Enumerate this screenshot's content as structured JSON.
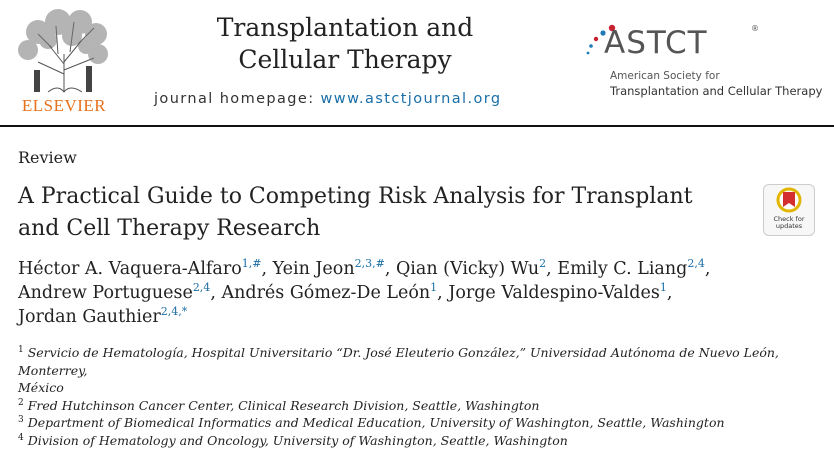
{
  "header": {
    "publisher_name": "ELSEVIER",
    "journal_title_line1": "Transplantation and",
    "journal_title_line2": "Cellular Therapy",
    "homepage_label": "journal homepage:",
    "homepage_url": "www.astctjournal.org",
    "society_acronym": "ASTCT",
    "society_registered": "®",
    "society_name_line1": "American Society for",
    "society_name_line2": "Transplantation and Cellular Therapy",
    "society_colors": {
      "red": "#c8202f",
      "blue": "#1f7bb8",
      "grey": "#555555"
    }
  },
  "article": {
    "type": "Review",
    "title_line1": "A Practical Guide to Competing Risk Analysis for Transplant",
    "title_line2": "and Cell Therapy Research",
    "check_updates_line1": "Check for",
    "check_updates_line2": "updates"
  },
  "authors": [
    {
      "name": "Héctor A. Vaquera-Alfaro",
      "marks": "1,#",
      "sep": ", "
    },
    {
      "name": "Yein Jeon",
      "marks": "2,3,#",
      "sep": ", "
    },
    {
      "name": "Qian (Vicky) Wu",
      "marks": "2",
      "sep": ", "
    },
    {
      "name": "Emily C. Liang",
      "marks": "2,4",
      "sep": ","
    },
    {
      "name": "Andrew Portuguese",
      "marks": "2,4",
      "sep": ", "
    },
    {
      "name": "Andrés Gómez-De León",
      "marks": "1",
      "sep": ", "
    },
    {
      "name": "Jorge Valdespino-Valdes",
      "marks": "1",
      "sep": ","
    },
    {
      "name": "Jordan Gauthier",
      "marks": "2,4,*",
      "sep": ""
    }
  ],
  "affiliations": [
    {
      "num": "1",
      "text_line1": "Servicio de Hematología, Hospital Universitario “Dr. José Eleuterio González,” Universidad Autónoma de Nuevo León, Monterrey,",
      "text_line2": "México"
    },
    {
      "num": "2",
      "text": "Fred Hutchinson Cancer Center, Clinical Research Division, Seattle, Washington"
    },
    {
      "num": "3",
      "text": "Department of Biomedical Informatics and Medical Education, University of Washington, Seattle, Washington"
    },
    {
      "num": "4",
      "text": "Division of Hematology and Oncology, University of Washington, Seattle, Washington"
    }
  ]
}
